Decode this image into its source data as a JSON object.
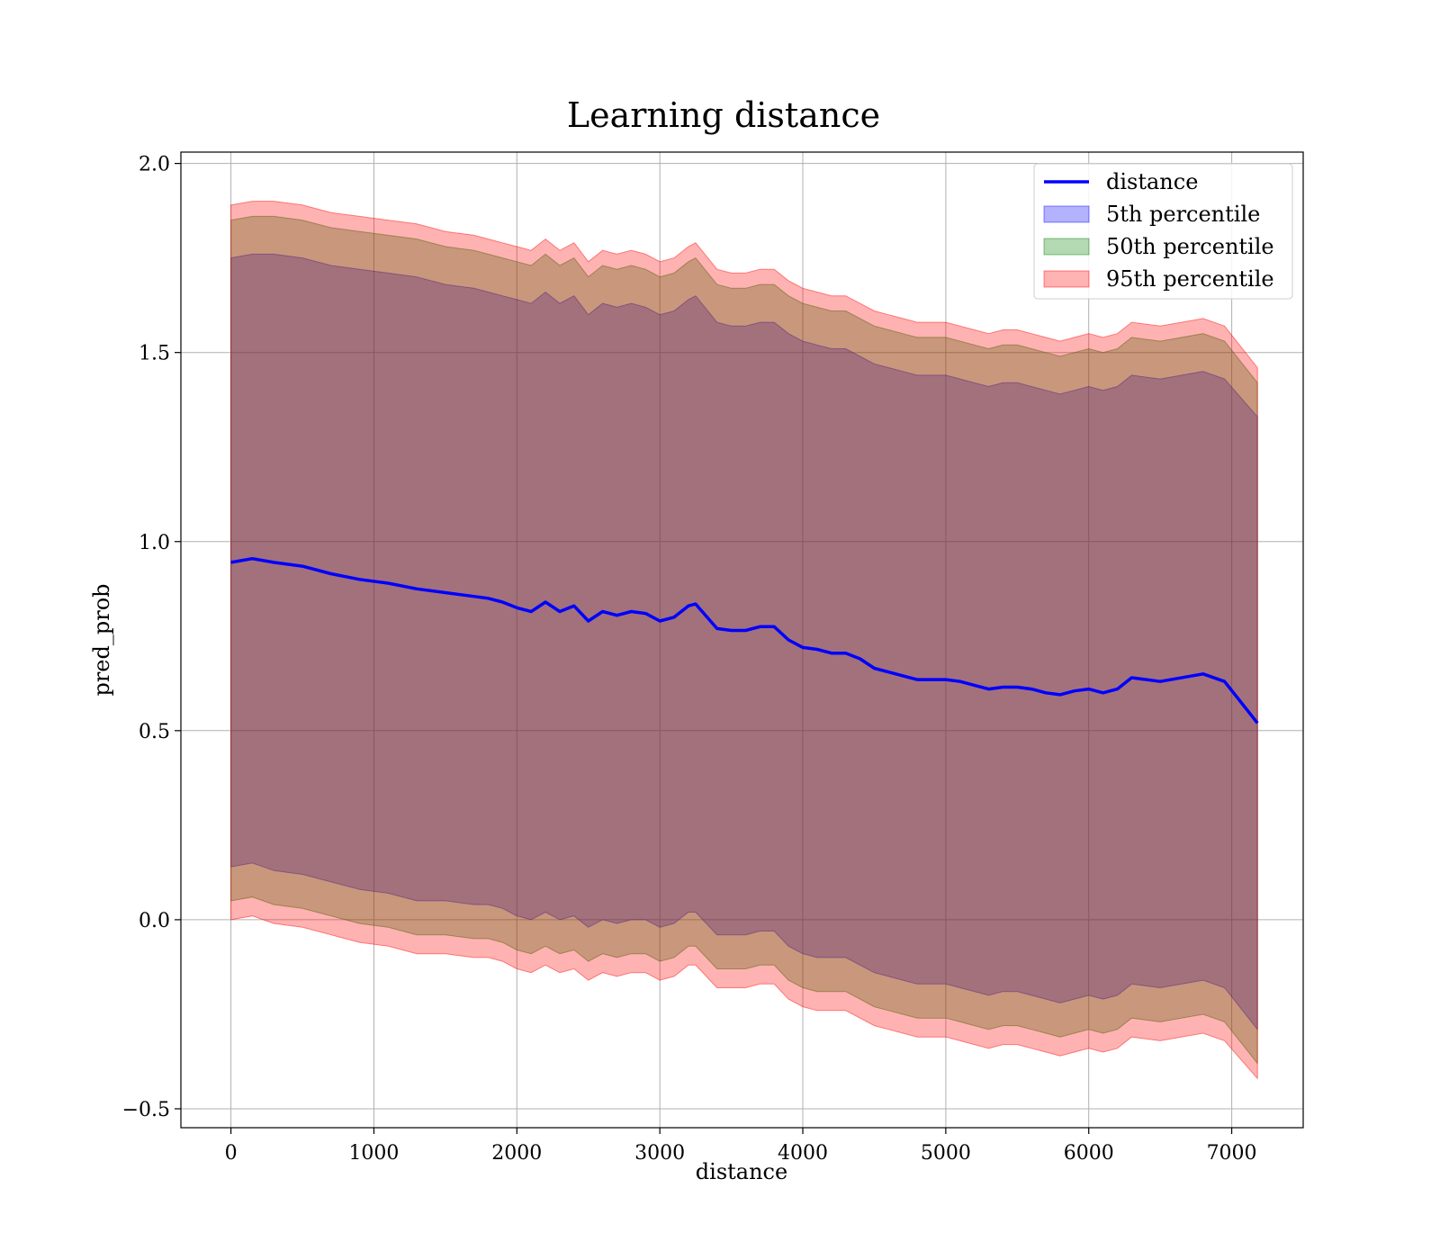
{
  "chart_data": {
    "type": "area",
    "title": "Learning distance",
    "xlabel": "distance",
    "ylabel": "pred_prob",
    "xlim": [
      -350,
      7500
    ],
    "ylim": [
      -0.55,
      2.03
    ],
    "xticks": [
      0,
      1000,
      2000,
      3000,
      4000,
      5000,
      6000,
      7000
    ],
    "yticks": [
      -0.5,
      0.0,
      0.5,
      1.0,
      1.5,
      2.0
    ],
    "xtick_labels": [
      "0",
      "1000",
      "2000",
      "3000",
      "4000",
      "5000",
      "6000",
      "7000"
    ],
    "ytick_labels": [
      "−0.5",
      "0.0",
      "0.5",
      "1.0",
      "1.5",
      "2.0"
    ],
    "grid": true,
    "legend_position": "top-right",
    "legend": [
      {
        "label": "distance",
        "kind": "line",
        "color": "#0000ff"
      },
      {
        "label": "5th percentile",
        "kind": "patch",
        "color": "#0000ff"
      },
      {
        "label": "50th percentile",
        "kind": "patch",
        "color": "#008000"
      },
      {
        "label": "95th percentile",
        "kind": "patch",
        "color": "#ff0000"
      }
    ],
    "x": [
      0,
      150,
      300,
      500,
      700,
      900,
      1100,
      1300,
      1500,
      1700,
      1800,
      1900,
      2000,
      2100,
      2200,
      2300,
      2400,
      2500,
      2600,
      2700,
      2800,
      2900,
      3000,
      3100,
      3200,
      3250,
      3400,
      3500,
      3600,
      3700,
      3800,
      3900,
      4000,
      4100,
      4200,
      4300,
      4400,
      4500,
      4600,
      4700,
      4800,
      4900,
      5000,
      5100,
      5200,
      5300,
      5400,
      5500,
      5600,
      5700,
      5800,
      5900,
      6000,
      6100,
      6200,
      6300,
      6500,
      6800,
      6950,
      7180
    ],
    "series": [
      {
        "name": "distance",
        "color": "#0000ff",
        "values": [
          0.945,
          0.955,
          0.945,
          0.935,
          0.915,
          0.9,
          0.89,
          0.875,
          0.865,
          0.855,
          0.85,
          0.84,
          0.825,
          0.815,
          0.84,
          0.815,
          0.83,
          0.79,
          0.815,
          0.805,
          0.815,
          0.81,
          0.79,
          0.8,
          0.83,
          0.835,
          0.77,
          0.765,
          0.765,
          0.775,
          0.775,
          0.74,
          0.72,
          0.715,
          0.705,
          0.705,
          0.69,
          0.665,
          0.655,
          0.645,
          0.635,
          0.635,
          0.635,
          0.63,
          0.62,
          0.61,
          0.615,
          0.615,
          0.61,
          0.6,
          0.595,
          0.605,
          0.61,
          0.6,
          0.61,
          0.64,
          0.63,
          0.65,
          0.63,
          0.52
        ]
      },
      {
        "name": "5th percentile",
        "color": "#0000ff",
        "upper": [
          1.75,
          1.76,
          1.76,
          1.75,
          1.73,
          1.72,
          1.71,
          1.7,
          1.68,
          1.67,
          1.66,
          1.65,
          1.64,
          1.63,
          1.66,
          1.63,
          1.65,
          1.6,
          1.63,
          1.62,
          1.63,
          1.62,
          1.6,
          1.61,
          1.64,
          1.65,
          1.58,
          1.57,
          1.57,
          1.58,
          1.58,
          1.55,
          1.53,
          1.52,
          1.51,
          1.51,
          1.49,
          1.47,
          1.46,
          1.45,
          1.44,
          1.44,
          1.44,
          1.43,
          1.42,
          1.41,
          1.42,
          1.42,
          1.41,
          1.4,
          1.39,
          1.4,
          1.41,
          1.4,
          1.41,
          1.44,
          1.43,
          1.45,
          1.43,
          1.33
        ],
        "lower": [
          0.14,
          0.15,
          0.13,
          0.12,
          0.1,
          0.08,
          0.07,
          0.05,
          0.05,
          0.04,
          0.04,
          0.03,
          0.01,
          0.0,
          0.02,
          0.0,
          0.01,
          -0.02,
          0.0,
          -0.01,
          0.0,
          -0.0,
          -0.02,
          -0.01,
          0.02,
          0.02,
          -0.04,
          -0.04,
          -0.04,
          -0.03,
          -0.03,
          -0.07,
          -0.09,
          -0.1,
          -0.1,
          -0.1,
          -0.12,
          -0.14,
          -0.15,
          -0.16,
          -0.17,
          -0.17,
          -0.17,
          -0.18,
          -0.19,
          -0.2,
          -0.19,
          -0.19,
          -0.2,
          -0.21,
          -0.22,
          -0.21,
          -0.2,
          -0.21,
          -0.2,
          -0.17,
          -0.18,
          -0.16,
          -0.18,
          -0.29
        ]
      },
      {
        "name": "50th percentile",
        "color": "#008000",
        "upper": [
          1.85,
          1.86,
          1.86,
          1.85,
          1.83,
          1.82,
          1.81,
          1.8,
          1.78,
          1.77,
          1.76,
          1.75,
          1.74,
          1.73,
          1.76,
          1.73,
          1.75,
          1.7,
          1.73,
          1.72,
          1.73,
          1.72,
          1.7,
          1.71,
          1.74,
          1.75,
          1.68,
          1.67,
          1.67,
          1.68,
          1.68,
          1.65,
          1.63,
          1.62,
          1.61,
          1.61,
          1.59,
          1.57,
          1.56,
          1.55,
          1.54,
          1.54,
          1.54,
          1.53,
          1.52,
          1.51,
          1.52,
          1.52,
          1.51,
          1.5,
          1.49,
          1.5,
          1.51,
          1.5,
          1.51,
          1.54,
          1.53,
          1.55,
          1.53,
          1.42
        ],
        "lower": [
          0.05,
          0.06,
          0.04,
          0.03,
          0.01,
          -0.01,
          -0.02,
          -0.04,
          -0.04,
          -0.05,
          -0.05,
          -0.06,
          -0.08,
          -0.09,
          -0.07,
          -0.09,
          -0.08,
          -0.11,
          -0.09,
          -0.1,
          -0.09,
          -0.09,
          -0.11,
          -0.1,
          -0.07,
          -0.07,
          -0.13,
          -0.13,
          -0.13,
          -0.12,
          -0.12,
          -0.16,
          -0.18,
          -0.19,
          -0.19,
          -0.19,
          -0.21,
          -0.23,
          -0.24,
          -0.25,
          -0.26,
          -0.26,
          -0.26,
          -0.27,
          -0.28,
          -0.29,
          -0.28,
          -0.28,
          -0.29,
          -0.3,
          -0.31,
          -0.3,
          -0.29,
          -0.3,
          -0.29,
          -0.26,
          -0.27,
          -0.25,
          -0.27,
          -0.38
        ]
      },
      {
        "name": "95th percentile",
        "color": "#ff0000",
        "upper": [
          1.89,
          1.9,
          1.9,
          1.89,
          1.87,
          1.86,
          1.85,
          1.84,
          1.82,
          1.81,
          1.8,
          1.79,
          1.78,
          1.77,
          1.8,
          1.77,
          1.79,
          1.74,
          1.77,
          1.76,
          1.77,
          1.76,
          1.74,
          1.75,
          1.78,
          1.79,
          1.72,
          1.71,
          1.71,
          1.72,
          1.72,
          1.69,
          1.67,
          1.66,
          1.65,
          1.65,
          1.63,
          1.61,
          1.6,
          1.59,
          1.58,
          1.58,
          1.58,
          1.57,
          1.56,
          1.55,
          1.56,
          1.56,
          1.55,
          1.54,
          1.53,
          1.54,
          1.55,
          1.54,
          1.55,
          1.58,
          1.57,
          1.59,
          1.57,
          1.46
        ],
        "lower": [
          0.0,
          0.01,
          -0.01,
          -0.02,
          -0.04,
          -0.06,
          -0.07,
          -0.09,
          -0.09,
          -0.1,
          -0.1,
          -0.11,
          -0.13,
          -0.14,
          -0.12,
          -0.14,
          -0.13,
          -0.16,
          -0.14,
          -0.15,
          -0.14,
          -0.14,
          -0.16,
          -0.15,
          -0.12,
          -0.12,
          -0.18,
          -0.18,
          -0.18,
          -0.17,
          -0.17,
          -0.21,
          -0.23,
          -0.24,
          -0.24,
          -0.24,
          -0.26,
          -0.28,
          -0.29,
          -0.3,
          -0.31,
          -0.31,
          -0.31,
          -0.32,
          -0.33,
          -0.34,
          -0.33,
          -0.33,
          -0.34,
          -0.35,
          -0.36,
          -0.35,
          -0.34,
          -0.35,
          -0.34,
          -0.31,
          -0.32,
          -0.3,
          -0.32,
          -0.42
        ]
      }
    ]
  }
}
